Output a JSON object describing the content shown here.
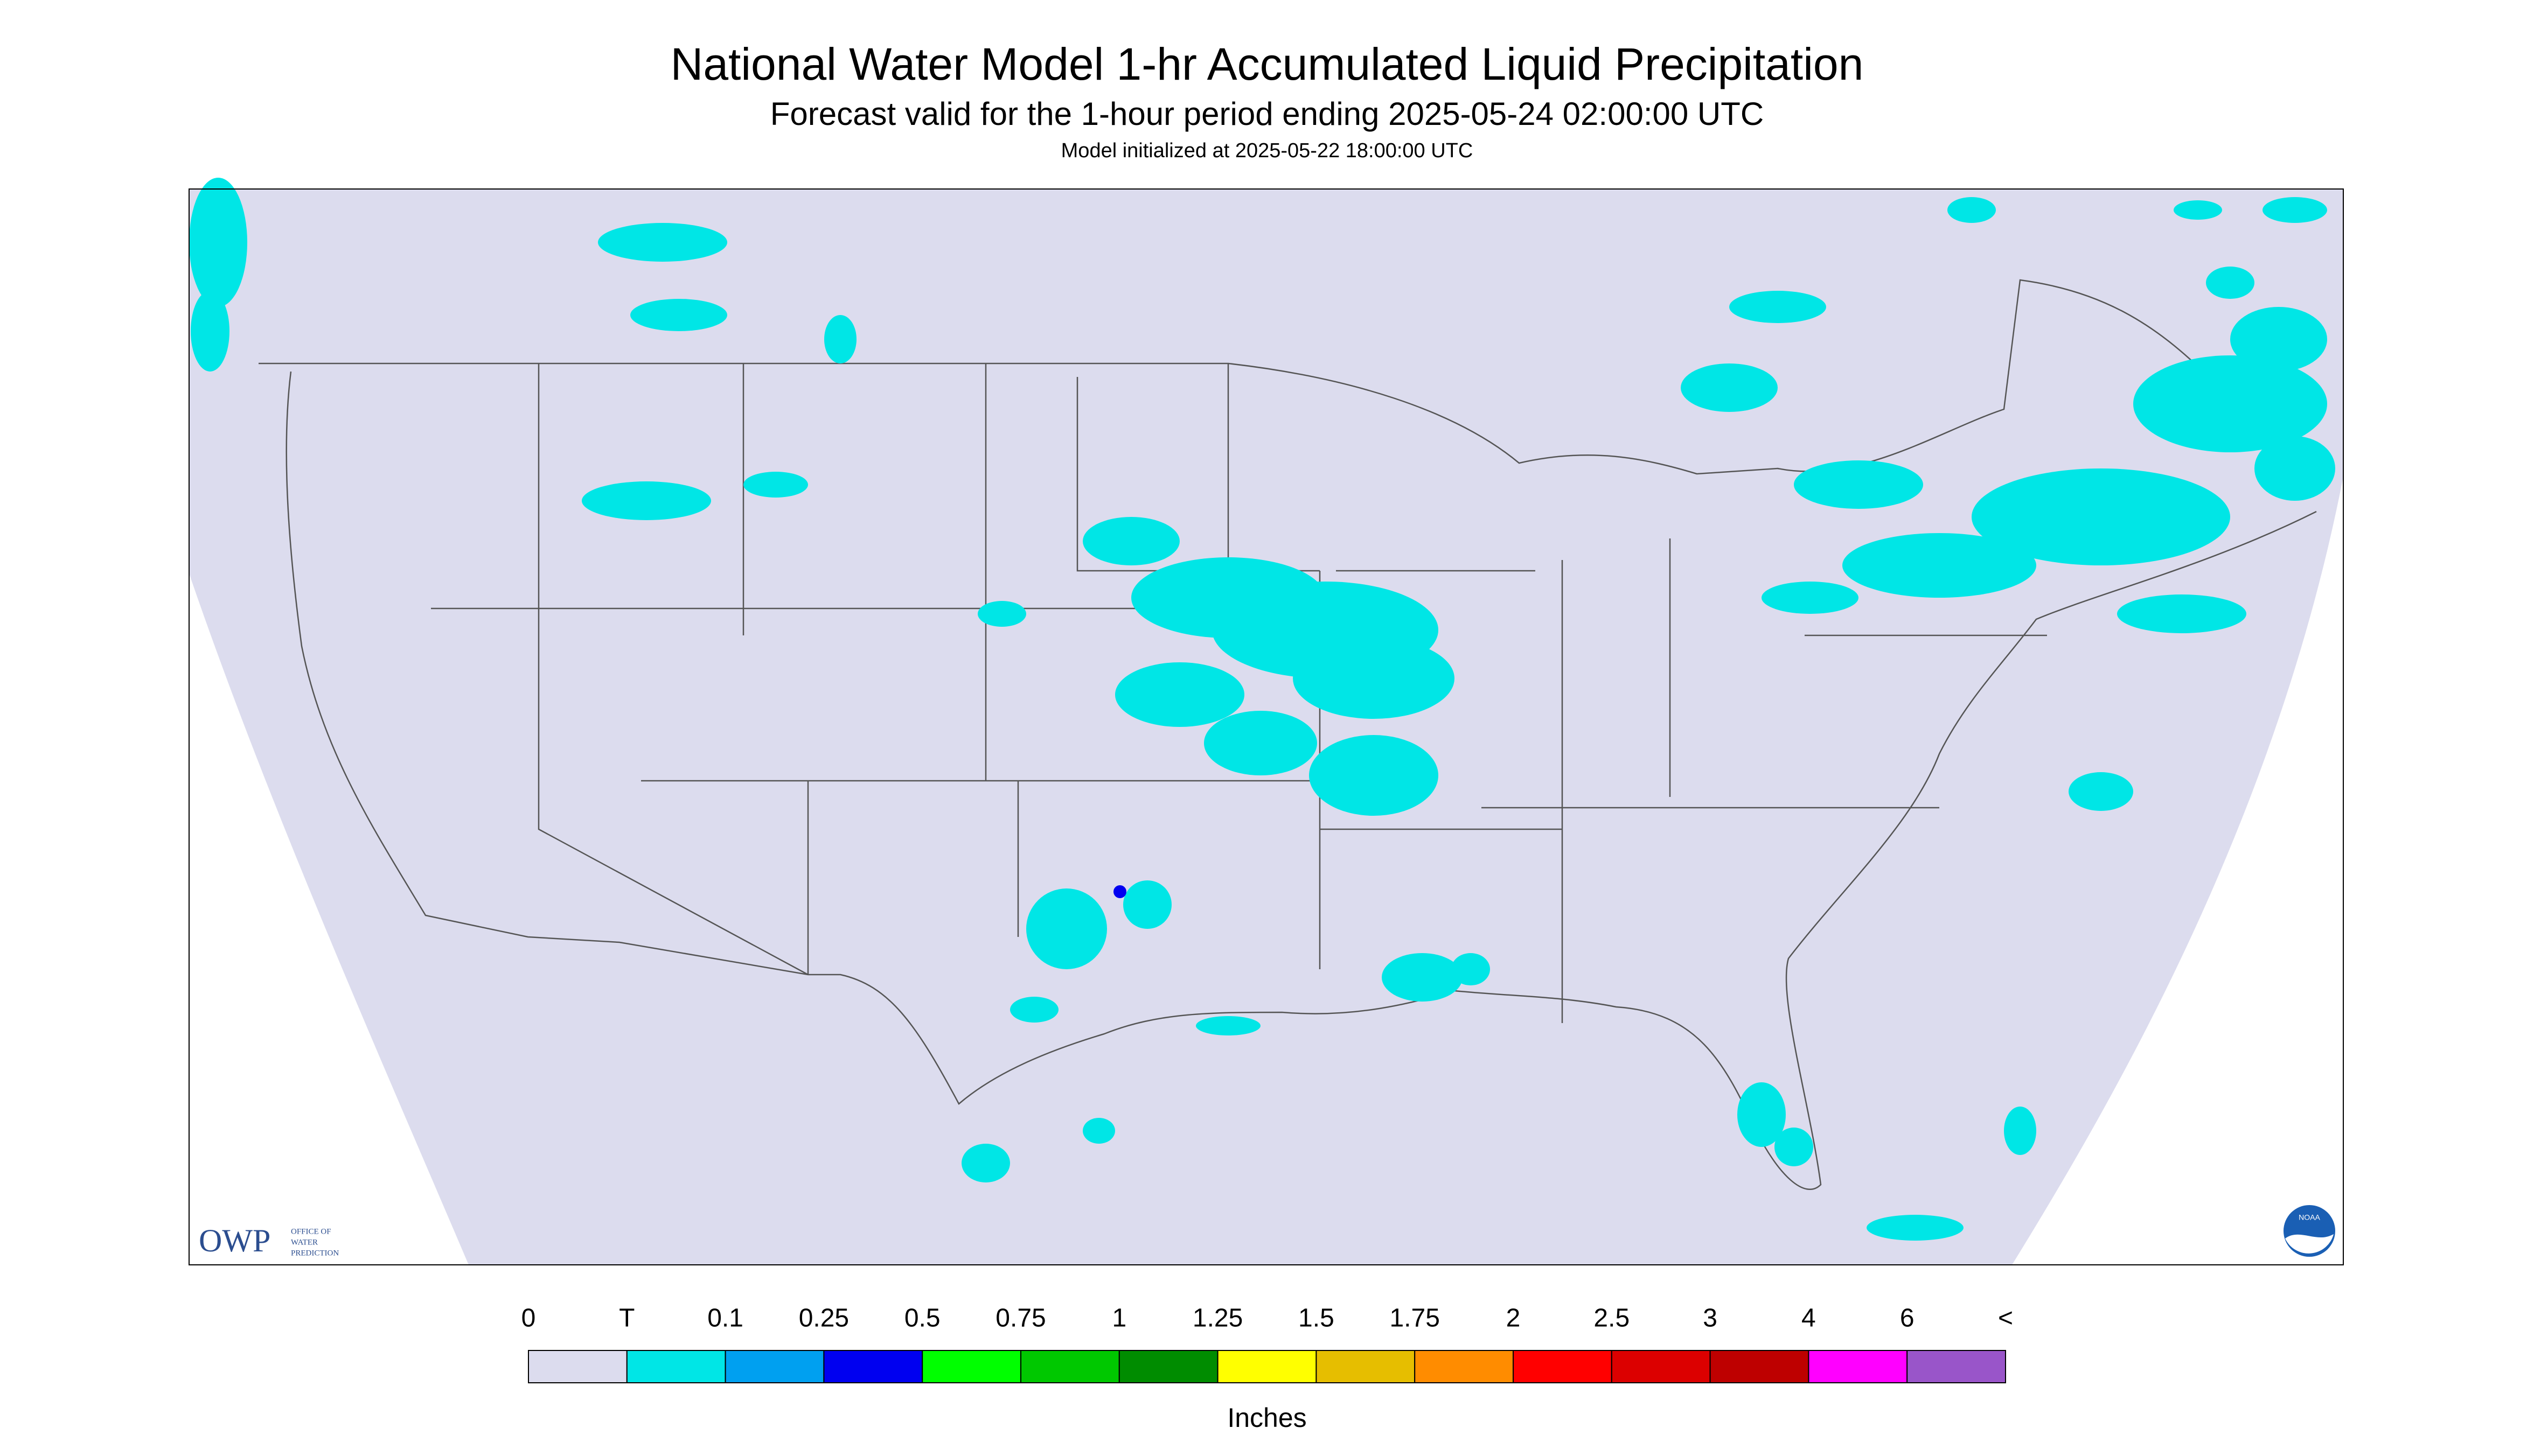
{
  "header": {
    "title": "National Water Model 1-hr Accumulated Liquid Precipitation",
    "subtitle": "Forecast valid for the 1-hour period ending 2025-05-24 02:00:00 UTC",
    "note": "Model initialized at 2025-05-22 18:00:00 UTC"
  },
  "legend": {
    "labels": [
      "0",
      "T",
      "0.1",
      "0.25",
      "0.5",
      "0.75",
      "1",
      "1.25",
      "1.5",
      "1.75",
      "2",
      "2.5",
      "3",
      "4",
      "6",
      "<"
    ],
    "colors": [
      "#dcdcee",
      "#00e6e6",
      "#00a0f0",
      "#0000f0",
      "#00ff00",
      "#00c800",
      "#008c00",
      "#ffff00",
      "#e6be00",
      "#ff8c00",
      "#ff0000",
      "#dc0000",
      "#be0000",
      "#ff00ff",
      "#9955c9"
    ],
    "unit": "Inches"
  },
  "logos": {
    "owp": "OWP",
    "owp_text": [
      "OFFICE OF",
      "WATER",
      "PREDICTION"
    ],
    "noaa": "NOAA"
  }
}
